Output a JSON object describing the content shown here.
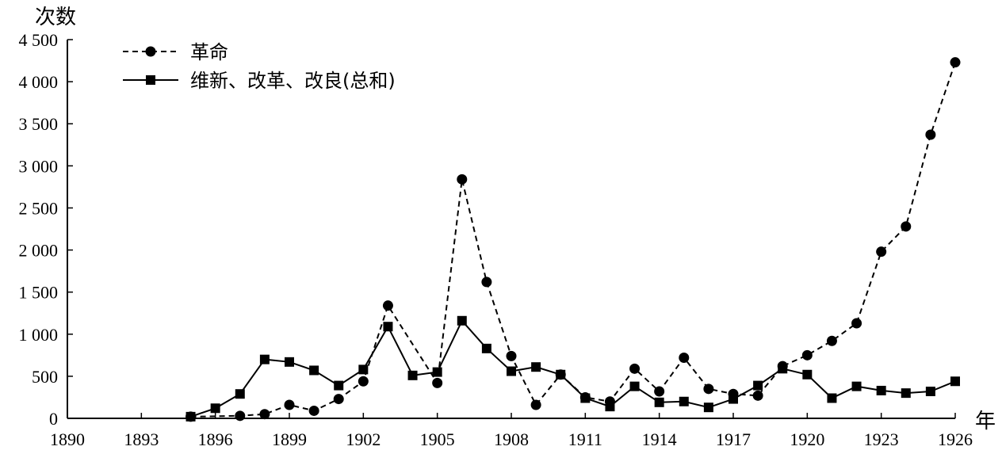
{
  "chart_data": {
    "type": "line",
    "title": "",
    "ylabel": "次数",
    "xlabel": "年",
    "xlim": [
      1890,
      1926
    ],
    "ylim": [
      0,
      4500
    ],
    "x_ticks": [
      1890,
      1893,
      1896,
      1899,
      1902,
      1905,
      1908,
      1911,
      1914,
      1917,
      1920,
      1923,
      1926
    ],
    "x_tick_labels": [
      "1890",
      "1893",
      "1896",
      "1899",
      "1902",
      "1905",
      "1908",
      "1911",
      "1914",
      "1917",
      "1920",
      "1923",
      "1926"
    ],
    "y_ticks": [
      0,
      500,
      1000,
      1500,
      2000,
      2500,
      3000,
      3500,
      4000,
      4500
    ],
    "y_tick_labels": [
      "0",
      "500",
      "1 000",
      "1 500",
      "2 000",
      "2 500",
      "3 000",
      "3 500",
      "4 000",
      "4 500"
    ],
    "grid": false,
    "legend_position": "top-left",
    "series": [
      {
        "name": "革命",
        "style": "dashed",
        "marker": "circle",
        "color": "#000000",
        "x": [
          1895,
          1897,
          1898,
          1899,
          1900,
          1901,
          1902,
          1903,
          1905,
          1906,
          1907,
          1908,
          1909,
          1910,
          1911,
          1912,
          1913,
          1914,
          1915,
          1916,
          1917,
          1918,
          1919,
          1920,
          1921,
          1922,
          1923,
          1924,
          1925,
          1926
        ],
        "y": [
          20,
          30,
          50,
          160,
          90,
          230,
          440,
          1340,
          420,
          2840,
          1620,
          740,
          160,
          520,
          250,
          200,
          590,
          320,
          720,
          350,
          290,
          270,
          620,
          750,
          920,
          1130,
          1980,
          2280,
          3370,
          4230
        ]
      },
      {
        "name": "维新、改革、改良(总和)",
        "style": "solid",
        "marker": "square",
        "color": "#000000",
        "x": [
          1895,
          1896,
          1897,
          1898,
          1899,
          1900,
          1901,
          1902,
          1903,
          1904,
          1905,
          1906,
          1907,
          1908,
          1909,
          1910,
          1911,
          1912,
          1913,
          1914,
          1915,
          1916,
          1917,
          1918,
          1919,
          1920,
          1921,
          1922,
          1923,
          1924,
          1925,
          1926
        ],
        "y": [
          20,
          120,
          290,
          700,
          670,
          570,
          390,
          580,
          1090,
          510,
          550,
          1160,
          830,
          560,
          610,
          520,
          240,
          140,
          380,
          190,
          200,
          130,
          230,
          390,
          590,
          520,
          240,
          380,
          330,
          300,
          320,
          440
        ]
      }
    ]
  }
}
